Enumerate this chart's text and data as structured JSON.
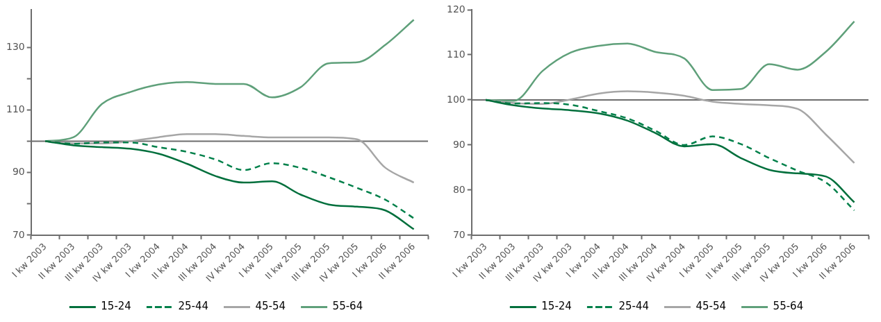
{
  "chart_data": [
    {
      "type": "line",
      "categories": [
        "I kw 2003",
        "II kw 2003",
        "III kw 2003",
        "IV kw 2003",
        "I kw 2004",
        "II kw 2004",
        "III kw 2004",
        "IV kw 2004",
        "I kw 2005",
        "II kw 2005",
        "III kw 2005",
        "IV kw 2005",
        "I kw 2006",
        "II kw 2006"
      ],
      "series": [
        {
          "name": "15-24",
          "color": "#006f3c",
          "line_style": "solid",
          "values": [
            100,
            98.7,
            98.1,
            97.6,
            96.0,
            92.8,
            88.9,
            86.8,
            87.2,
            83.0,
            79.8,
            79.1,
            77.9,
            71.9
          ]
        },
        {
          "name": "25-44",
          "color": "#00804a",
          "line_style": "dashed",
          "values": [
            100,
            99.2,
            99.6,
            99.6,
            98.1,
            96.6,
            94.2,
            90.8,
            93.0,
            91.5,
            88.5,
            85.1,
            81.3,
            75.4
          ]
        },
        {
          "name": "45-54",
          "color": "#a6a6a6",
          "line_style": "solid",
          "values": [
            100,
            99.3,
            99.3,
            100,
            101.3,
            102.3,
            102.3,
            101.7,
            101.2,
            101.2,
            101.2,
            100.6,
            91.5,
            86.8
          ]
        },
        {
          "name": "55-64",
          "color": "#5fa07a",
          "line_style": "solid",
          "values": [
            100,
            101.3,
            111.9,
            115.7,
            118.1,
            118.9,
            118.3,
            118.3,
            114.0,
            117.2,
            124.9,
            125.2,
            130.8,
            138.8
          ]
        }
      ],
      "ylim": [
        70,
        142
      ],
      "yticks": [
        70,
        {
          "value": 80,
          "label": null
        },
        90,
        {
          "value": 100,
          "label": null
        },
        110,
        {
          "value": 120,
          "label": null
        },
        130
      ],
      "ref_lines": [
        {
          "axis": "y",
          "value": 100,
          "color": "#6d6d6d"
        }
      ],
      "grid": false,
      "legend": "bottom",
      "marker": "none"
    },
    {
      "type": "line",
      "categories": [
        "I kw 2003",
        "II kw 2003",
        "III kw 2003",
        "IV kw 2003",
        "I kw 2004",
        "II kw 2004",
        "III kw 2004",
        "IV kw 2004",
        "I kw 2005",
        "II kw 2005",
        "III kw 2005",
        "IV kw 2005",
        "I kw 2006",
        "II kw 2006"
      ],
      "series": [
        {
          "name": "15-24",
          "color": "#006f3c",
          "line_style": "solid",
          "values": [
            100,
            98.8,
            98.1,
            97.7,
            97.0,
            95.4,
            92.6,
            89.7,
            90.2,
            87.1,
            84.5,
            83.7,
            83.0,
            77.3
          ]
        },
        {
          "name": "25-44",
          "color": "#00804a",
          "line_style": "dashed",
          "values": [
            100,
            99.2,
            99.3,
            98.9,
            97.5,
            95.9,
            93.1,
            90.0,
            91.9,
            90.2,
            87.1,
            84.3,
            81.7,
            75.5
          ]
        },
        {
          "name": "45-54",
          "color": "#a6a6a6",
          "line_style": "solid",
          "values": [
            100,
            99.3,
            99.1,
            100.1,
            101.4,
            101.9,
            101.6,
            100.9,
            99.6,
            99.1,
            98.8,
            98.0,
            92.3,
            86.0
          ]
        },
        {
          "name": "55-64",
          "color": "#5fa07a",
          "line_style": "solid",
          "values": [
            100,
            99.8,
            106.4,
            110.5,
            112.0,
            112.5,
            110.6,
            109.2,
            102.2,
            102.4,
            107.9,
            106.7,
            110.7,
            117.4
          ]
        }
      ],
      "ylim": [
        70,
        120
      ],
      "yticks": [
        70,
        80,
        90,
        100,
        110,
        120
      ],
      "ref_lines": [
        {
          "axis": "y",
          "value": 100,
          "color": "#6d6d6d"
        }
      ],
      "grid": false,
      "legend": "bottom",
      "marker": "none"
    }
  ]
}
